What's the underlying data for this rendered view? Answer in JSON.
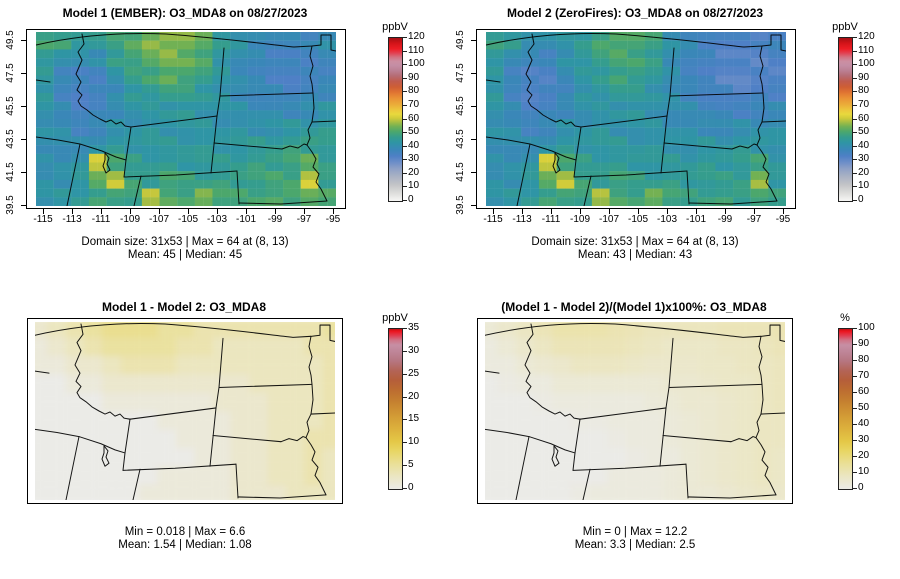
{
  "chart_data": {
    "type": "heatmap",
    "figure": "2x2 model comparison maps, O3_MDA8 on 08/27/2023, northwestern/central US states",
    "palettes": {
      "conc": [
        [
          0,
          "#f7f7f5"
        ],
        [
          0.05,
          "#dddddb"
        ],
        [
          0.1,
          "#c3c4c7"
        ],
        [
          0.15,
          "#aab2c4"
        ],
        [
          0.2,
          "#8da0c6"
        ],
        [
          0.233,
          "#7090c8"
        ],
        [
          0.275,
          "#4e80c6"
        ],
        [
          0.317,
          "#3a87b8"
        ],
        [
          0.358,
          "#2f95a5"
        ],
        [
          0.392,
          "#359d8d"
        ],
        [
          0.425,
          "#4ba76d"
        ],
        [
          0.458,
          "#73b153"
        ],
        [
          0.483,
          "#a3bd44"
        ],
        [
          0.508,
          "#d0cb3a"
        ],
        [
          0.533,
          "#e9d93d"
        ],
        [
          0.558,
          "#ecc83d"
        ],
        [
          0.592,
          "#ebac39"
        ],
        [
          0.633,
          "#e99035"
        ],
        [
          0.667,
          "#e07332"
        ],
        [
          0.7,
          "#ce5e35"
        ],
        [
          0.733,
          "#c15b4c"
        ],
        [
          0.767,
          "#b66b73"
        ],
        [
          0.8,
          "#bb8093"
        ],
        [
          0.833,
          "#c58ea5"
        ],
        [
          0.858,
          "#cc8ea1"
        ],
        [
          0.883,
          "#d37180"
        ],
        [
          0.908,
          "#e24051"
        ],
        [
          0.933,
          "#ed1d25"
        ],
        [
          0.967,
          "#d41419"
        ],
        [
          1,
          "#a60f13"
        ]
      ],
      "heat": [
        [
          0,
          "#ebebe7"
        ],
        [
          0.08,
          "#ebe6c2"
        ],
        [
          0.16,
          "#eadf96"
        ],
        [
          0.24,
          "#e8d562"
        ],
        [
          0.3,
          "#e4c746"
        ],
        [
          0.38,
          "#dcb03c"
        ],
        [
          0.46,
          "#d29a35"
        ],
        [
          0.54,
          "#c68230"
        ],
        [
          0.62,
          "#bc6c31"
        ],
        [
          0.68,
          "#b55e3a"
        ],
        [
          0.74,
          "#b36457"
        ],
        [
          0.8,
          "#b67681"
        ],
        [
          0.86,
          "#bf8699"
        ],
        [
          0.9,
          "#c78fa4"
        ],
        [
          0.93,
          "#cf7487"
        ],
        [
          0.96,
          "#e13b4e"
        ],
        [
          0.985,
          "#ec161f"
        ],
        [
          1,
          "#c60d12"
        ]
      ]
    },
    "panels": [
      {
        "name": "model1",
        "title": "Model 1 (EMBER): O3_MDA8 on 08/27/2023",
        "captions": [
          "Domain size: 31x53 | Max = 64 at (8, 13)",
          "Mean: 45 |  Median: 45"
        ],
        "axes": {
          "x_ticks": [
            "-115",
            "-113",
            "-111",
            "-109",
            "-107",
            "-105",
            "-103",
            "-101",
            "-99",
            "-97",
            "-95"
          ],
          "y_ticks": [
            "39.5",
            "41.5",
            "43.5",
            "45.5",
            "47.5",
            "49.5"
          ]
        },
        "colorbar": {
          "label": "ppbV",
          "min": 0,
          "max": 120,
          "ticks": [
            0,
            10,
            20,
            30,
            40,
            50,
            60,
            70,
            80,
            90,
            100,
            110,
            120
          ],
          "palette": "conc"
        },
        "grid": {
          "palette": "conc",
          "min": 0,
          "max": 120,
          "jitter": true,
          "smooth": false,
          "values": [
            "50 48 46 46 48 52 55 57 56 52 46 42 40 38 37 38 40",
            "46 42 40 41 46 50 53 55 54 50 44 40 38 36 35 36 38",
            "44 38 35 36 42 47 50 52 51 48 43 40 37 35 34 35 37",
            "43 37 34 35 40 44 46 48 47 45 42 40 38 37 36 37 39",
            "42 38 35 36 40 42 43 44 44 43 42 41 40 39 39 40 42",
            "42 40 37 38 41 42 43 43 43 43 42 42 42 42 43 44 45",
            "41 40 39 42 44 44 44 44 44 44 44 44 45 46 47 48 46",
            "40 41 42 62 50 46 45 45 45 45 45 46 47 48 49 52 47",
            "41 42 44 52 60 48 47 50 48 47 47 48 48 49 50 60 48",
            "42 43 45 48 50 48 58 52 49 56 50 49 50 50 51 53 50"
          ]
        }
      },
      {
        "name": "model2",
        "title": "Model 2 (ZeroFires): O3_MDA8 on 08/27/2023",
        "captions": [
          "Domain size: 31x53 | Max = 64 at (8, 13)",
          "Mean: 43 |  Median: 43"
        ],
        "axes": {
          "x_ticks": [
            "-115",
            "-113",
            "-111",
            "-109",
            "-107",
            "-105",
            "-103",
            "-101",
            "-99",
            "-97",
            "-95"
          ],
          "y_ticks": [
            "39.5",
            "41.5",
            "43.5",
            "45.5",
            "47.5",
            "49.5"
          ]
        },
        "colorbar": {
          "label": "ppbV",
          "min": 0,
          "max": 120,
          "ticks": [
            0,
            10,
            20,
            30,
            40,
            50,
            60,
            70,
            80,
            90,
            100,
            110,
            120
          ],
          "palette": "conc"
        },
        "grid": {
          "palette": "conc",
          "min": 0,
          "max": 120,
          "jitter": true,
          "smooth": false,
          "values": [
            "48 45 42 41 42 46 49 52 51 48 42 38 36 34 33 34 35",
            "45 40 37 37 41 45 48 50 50 46 41 37 35 33 32 32 34",
            "43 37 33 34 39 43 46 48 48 45 40 37 34 32 31 32 33",
            "43 37 33 34 38 42 44 46 45 43 40 38 35 34 33 34 35",
            "42 38 35 36 39 41 42 43 43 42 40 39 38 36 36 37 38",
            "42 40 37 38 41 42 43 42 42 42 41 40 40 39 40 41 41",
            "41 40 39 42 44 44 44 44 43 43 43 42 43 43 44 44 42",
            "40 41 42 62 50 46 45 45 45 44 44 44 45 45 46 48 44",
            "41 42 44 52 60 48 47 49 47 46 46 46 46 46 47 56 45",
            "42 43 45 48 50 48 57 51 48 55 49 47 48 48 48 50 47"
          ]
        }
      },
      {
        "name": "difference",
        "title": "Model 1 - Model 2: O3_MDA8",
        "captions": [
          "Min = 0.018 | Max = 6.6",
          "Mean: 1.54 |  Median: 1.08"
        ],
        "axes": null,
        "colorbar": {
          "label": "ppbV",
          "min": 0,
          "max": 35,
          "ticks": [
            0,
            5,
            10,
            15,
            20,
            25,
            30,
            35
          ],
          "palette": "heat"
        },
        "grid": {
          "palette": "heat",
          "min": 0,
          "max": 35,
          "jitter": false,
          "smooth": true,
          "values": [
            "2 3 4 5 6 6 6 5 5 4 4 4 4 4 4 4 5",
            "1 2 3 4 5 5 5 5 4 4 3 3 3 3 3 4 4",
            "1 1 2 2 3 4 4 4 3 3 3 3 3 3 3 3 4",
            "0 0 1 1 2 2 2 2 2 2 2 2 3 3 3 3 4",
            "0 0 0 0 1 1 1 1 1 1 2 2 2 3 3 3 4",
            "0 0 0 0 0 0 0 1 1 1 1 2 2 3 3 3 4",
            "0 0 0 0 0 0 0 0 1 1 1 2 2 3 3 4 4",
            "0 0 0 0 0 0 0 0 0 1 1 2 2 3 3 4 3",
            "0 0 0 0 0 0 0 1 1 1 1 2 2 3 3 4 3",
            "0 0 0 0 0 0 1 1 1 1 1 2 2 2 3 3 3"
          ]
        }
      },
      {
        "name": "percent-difference",
        "title": "(Model 1 - Model 2)/(Model 1)x100%: O3_MDA8",
        "captions": [
          "Min = 0 | Max = 12.2",
          "Mean: 3.3 |  Median: 2.5"
        ],
        "axes": null,
        "colorbar": {
          "label": "%",
          "min": 0,
          "max": 100,
          "ticks": [
            0,
            10,
            20,
            30,
            40,
            50,
            60,
            70,
            80,
            90,
            100
          ],
          "palette": "heat"
        },
        "grid": {
          "palette": "heat",
          "min": 0,
          "max": 100,
          "jitter": false,
          "smooth": true,
          "values": [
            "4 6 8 10 12 12 12 11 10 9 9 9 9 10 10 10 11",
            "2 4 6 8 10 10 10 10 9 8 7 7 7 8 8 9 10",
            "2 2 4 5 6 8 8 8 7 6 6 6 7 7 8 8 9",
            "0 1 2 2 4 4 4 4 4 4 5 5 6 7 7 8 9",
            "0 0 0 1 2 2 2 2 2 3 4 5 5 6 7 8 9",
            "0 0 0 0 0 1 1 2 2 2 3 4 5 6 7 8 8",
            "0 0 0 0 0 0 0 1 2 2 3 4 5 6 7 8 8",
            "0 0 0 0 0 0 0 0 1 2 2 4 5 6 7 8 7",
            "0 0 0 0 0 0 0 2 2 2 3 4 5 6 7 8 7",
            "0 0 0 0 0 1 2 2 2 2 3 4 4 5 6 7 6"
          ]
        }
      }
    ]
  }
}
